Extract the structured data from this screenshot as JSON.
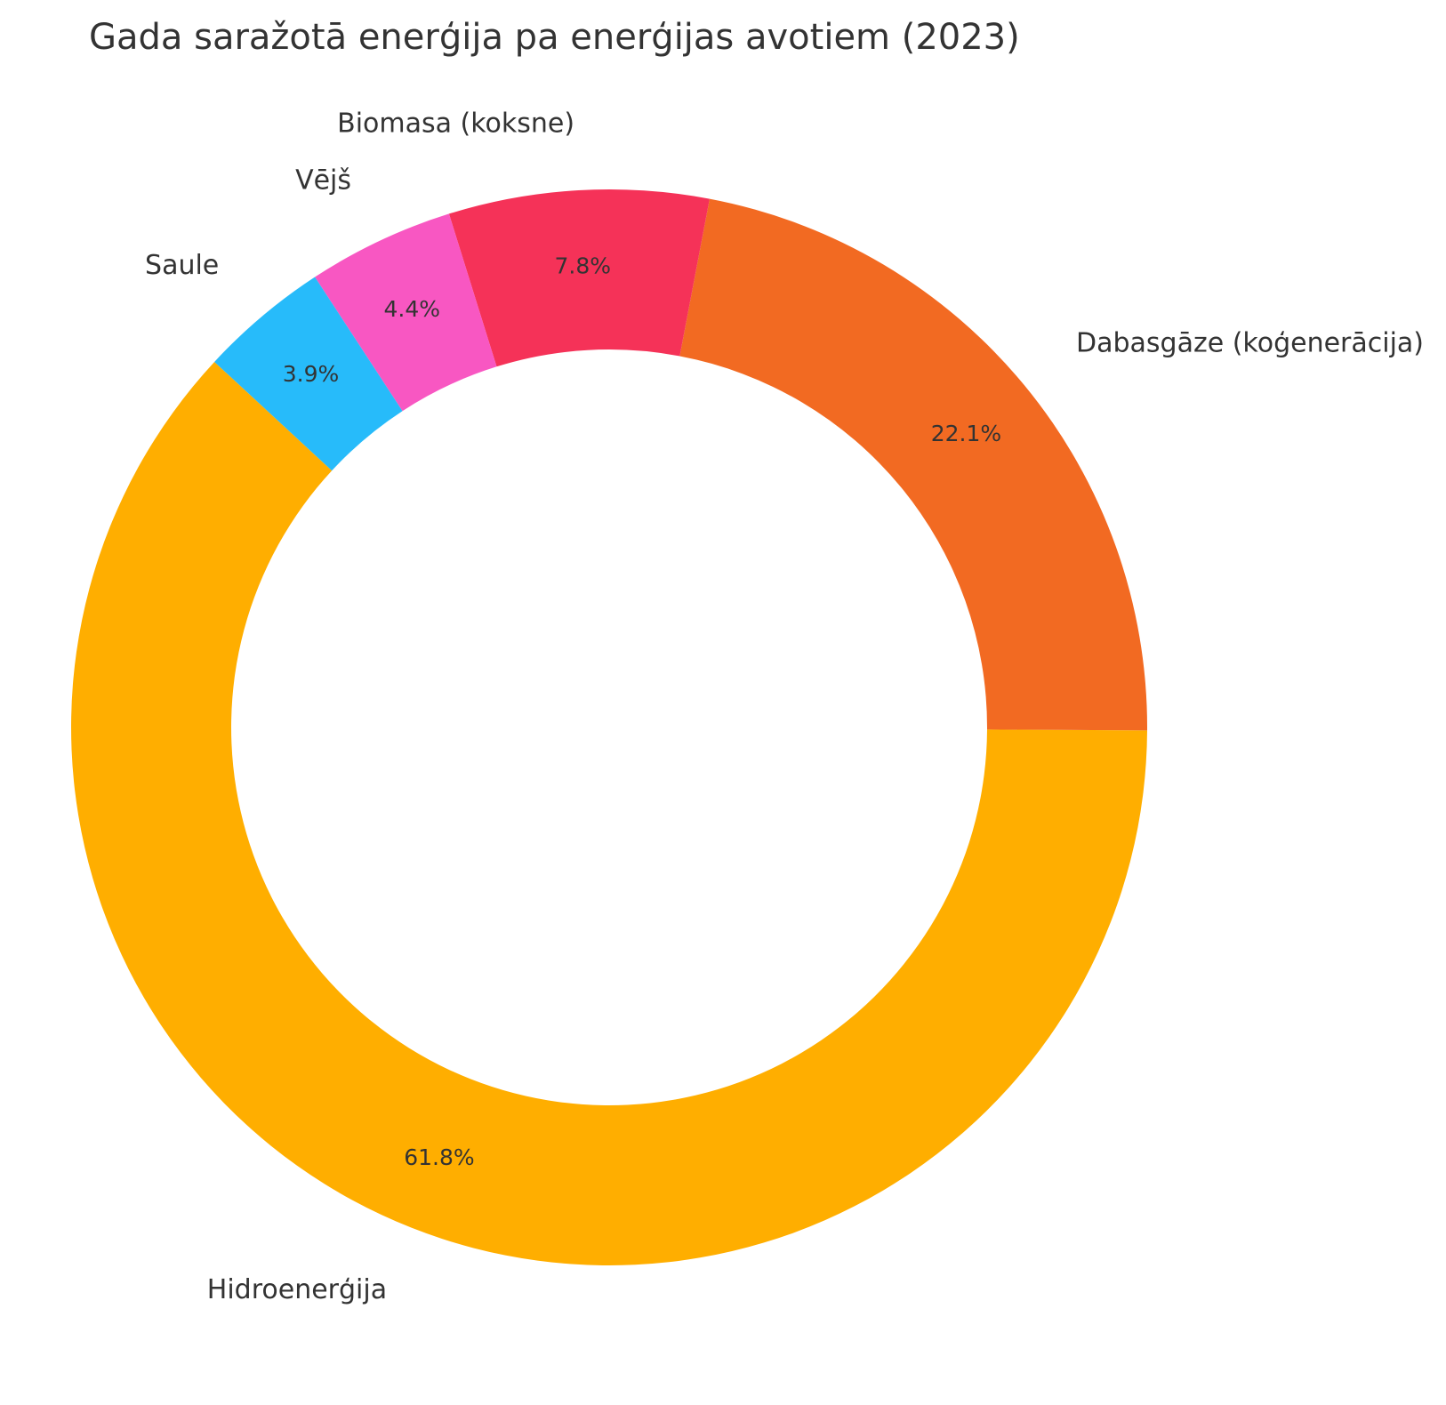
{
  "chart_data": {
    "type": "pie",
    "title": "Gada saražotā enerģija pa enerģijas avotiem (2023)",
    "donut": true,
    "categories": [
      "Hidroenerģija",
      "Dabasgāze (koģenerācija)",
      "Biomasa (koksne)",
      "Vējš",
      "Saule"
    ],
    "values": [
      61.8,
      22.1,
      7.8,
      4.4,
      3.9
    ],
    "value_labels": [
      "61.8%",
      "22.1%",
      "7.8%",
      "4.4%",
      "3.9%"
    ],
    "colors": [
      "#FFAE00",
      "#F26A22",
      "#F53258",
      "#F857C2",
      "#27BBFA"
    ],
    "legend": "none"
  }
}
